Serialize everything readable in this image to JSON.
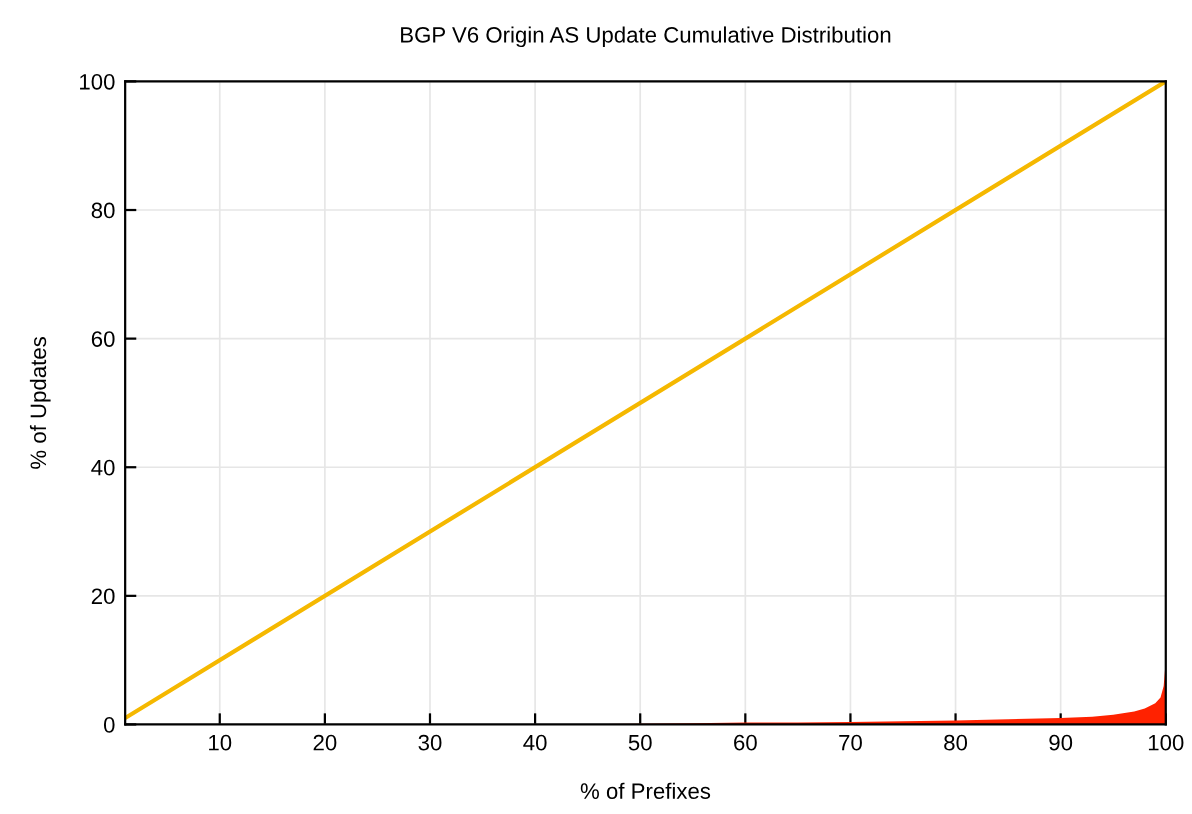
{
  "chart_data": {
    "type": "line",
    "title": "BGP V6 Origin AS Update Cumulative Distribution",
    "xlabel": "% of Prefixes",
    "ylabel": "% of Updates",
    "xlim": [
      1,
      100
    ],
    "ylim": [
      0,
      100
    ],
    "xticks": [
      10,
      20,
      30,
      40,
      50,
      60,
      70,
      80,
      90,
      100
    ],
    "yticks": [
      0,
      20,
      40,
      60,
      80,
      100
    ],
    "grid": true,
    "legend": false,
    "series": [
      {
        "type": "area",
        "color": "#ff2200",
        "x": [
          1,
          10,
          20,
          30,
          40,
          50,
          55,
          60,
          65,
          70,
          75,
          80,
          85,
          90,
          93,
          95,
          97,
          98,
          99,
          99.5,
          99.8,
          100
        ],
        "values": [
          0,
          0,
          0,
          0,
          0,
          0.1,
          0.2,
          0.3,
          0.3,
          0.4,
          0.5,
          0.6,
          0.8,
          1,
          1.2,
          1.5,
          2,
          2.5,
          3.3,
          4.2,
          6,
          10
        ]
      },
      {
        "color": "#f5b800",
        "x": [
          1,
          100
        ],
        "values": [
          1,
          100
        ]
      }
    ]
  }
}
